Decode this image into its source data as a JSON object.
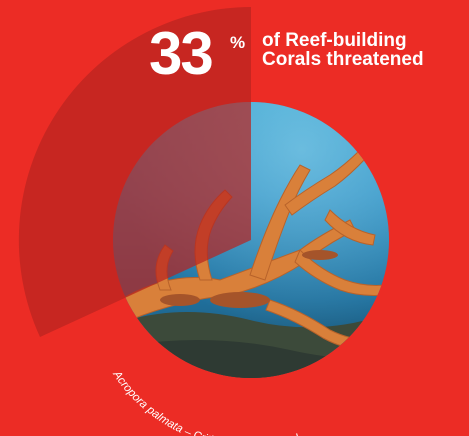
{
  "colors": {
    "background": "#ec2c25",
    "wedge": "#b82420",
    "text": "#ffffff"
  },
  "statistic": {
    "value": 33,
    "value_text": "33",
    "unit": "%",
    "fraction": 0.33
  },
  "description": {
    "line1": "of Reef-building",
    "line2": "Corals threatened"
  },
  "caption": {
    "species": "Acropora palmata",
    "status": " – Critically Endangered"
  }
}
